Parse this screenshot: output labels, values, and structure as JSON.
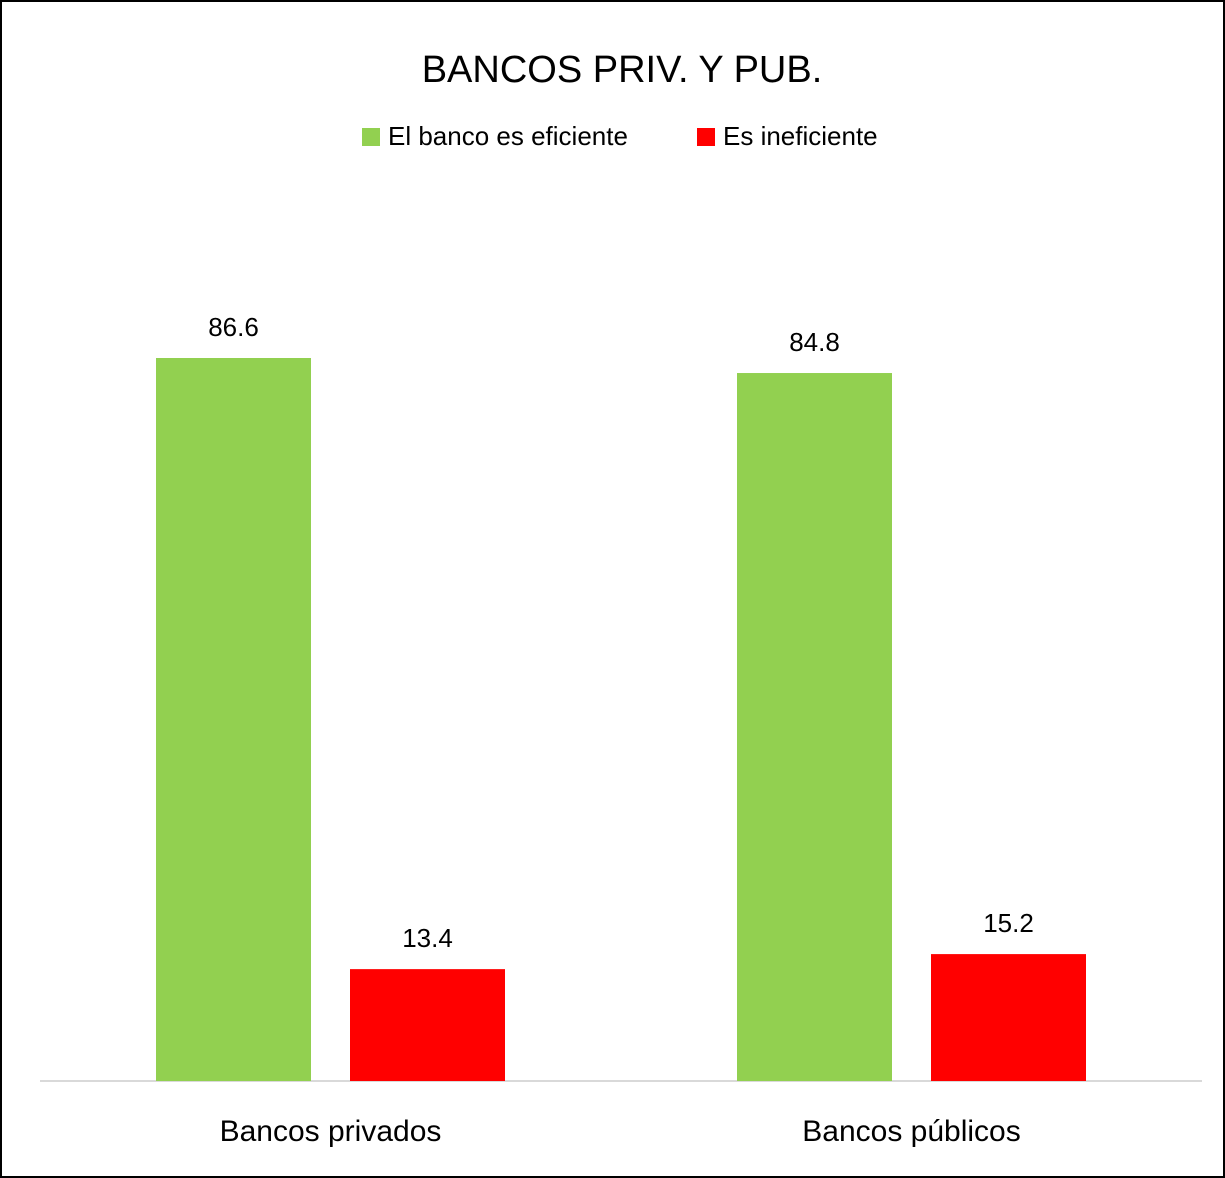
{
  "chart_data": {
    "type": "bar",
    "title": "BANCOS PRIV. Y PUB.",
    "categories": [
      "Bancos privados",
      "Bancos públicos"
    ],
    "series": [
      {
        "name": "El banco es eficiente",
        "color": "#92d050",
        "values": [
          86.6,
          84.8
        ]
      },
      {
        "name": "Es ineficiente",
        "color": "#ff0000",
        "values": [
          13.4,
          15.2
        ]
      }
    ]
  }
}
